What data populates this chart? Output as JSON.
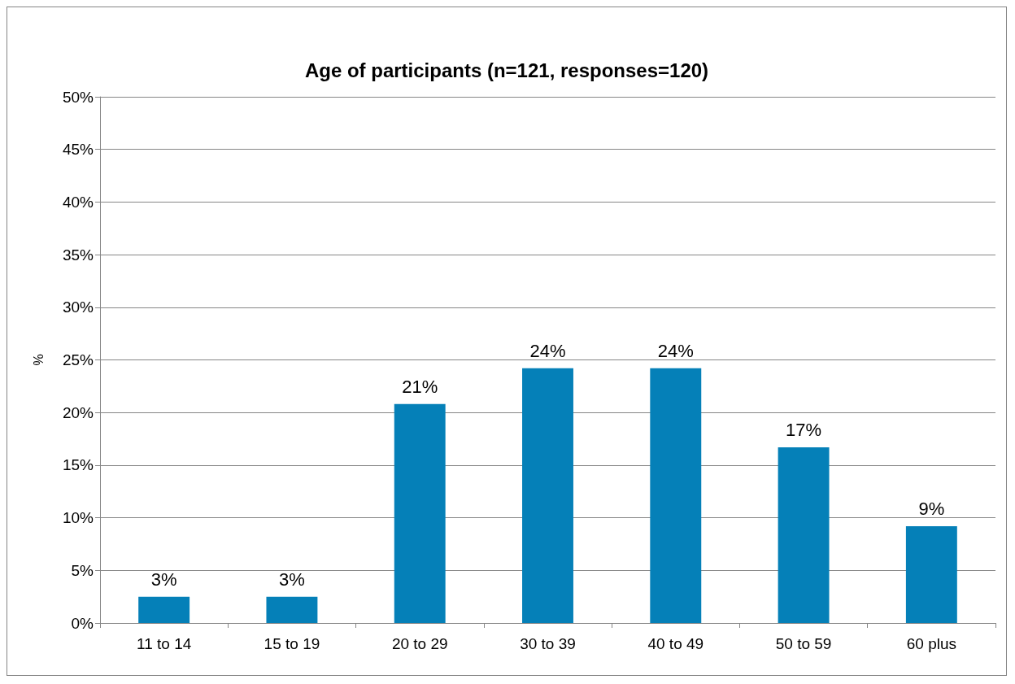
{
  "chart_data": {
    "type": "bar",
    "title": "Age of participants (n=121, responses=120)",
    "ylabel": "%",
    "categories": [
      "11 to 14",
      "15 to 19",
      "20 to 29",
      "30 to 39",
      "40 to 49",
      "50 to 59",
      "60 plus"
    ],
    "values": [
      2.5,
      2.5,
      20.8,
      24.2,
      24.2,
      16.7,
      9.2
    ],
    "value_labels": [
      "3%",
      "3%",
      "21%",
      "24%",
      "24%",
      "17%",
      "9%"
    ],
    "color": "#0580b8",
    "ylim": [
      0,
      50
    ],
    "yticks": [
      {
        "value": 0,
        "label": "0%"
      },
      {
        "value": 5,
        "label": "5%"
      },
      {
        "value": 10,
        "label": "10%"
      },
      {
        "value": 15,
        "label": "15%"
      },
      {
        "value": 20,
        "label": "20%"
      },
      {
        "value": 25,
        "label": "25%"
      },
      {
        "value": 30,
        "label": "30%"
      },
      {
        "value": 35,
        "label": "35%"
      },
      {
        "value": 40,
        "label": "40%"
      },
      {
        "value": 45,
        "label": "45%"
      },
      {
        "value": 50,
        "label": "50%"
      }
    ],
    "grid": "y"
  }
}
